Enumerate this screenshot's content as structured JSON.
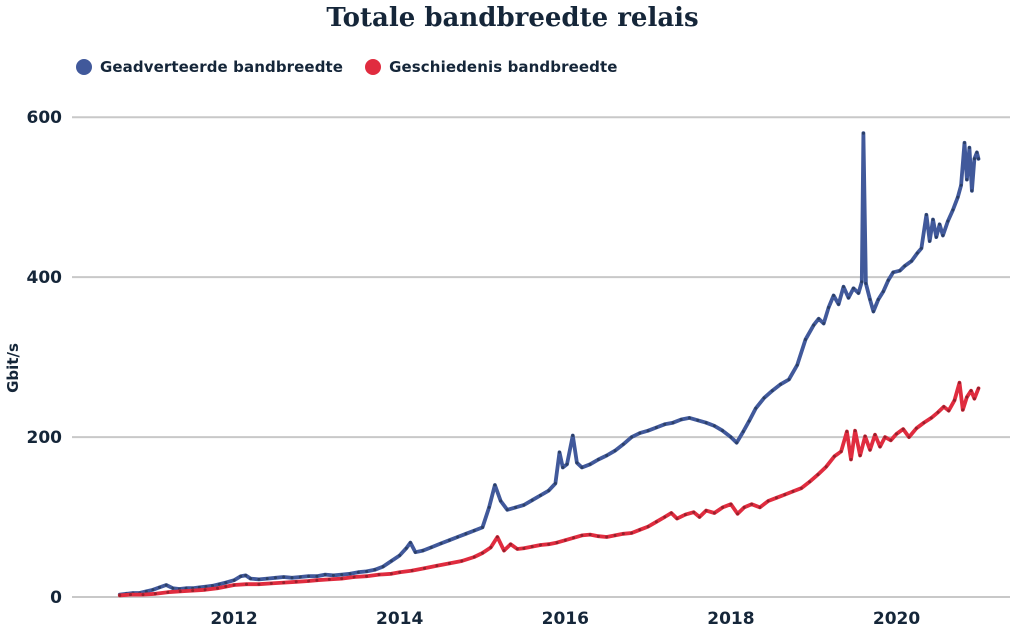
{
  "page": {
    "background_color": "#ffffff",
    "text_color": "#152639"
  },
  "chart_data": {
    "type": "line",
    "title": "Totale bandbreedte relais",
    "xlabel": "",
    "ylabel": "Gbit/s",
    "x_ticks": [
      2012,
      2014,
      2016,
      2018,
      2020
    ],
    "y_ticks": [
      0,
      200,
      400,
      600
    ],
    "x_range": [
      2010.2,
      2021.37
    ],
    "y_range": [
      0,
      634
    ],
    "grid": "horizontal",
    "grid_color": "#c8c8c8",
    "legend_position": "top-left",
    "series": [
      {
        "name": "Geadverteerde bandbreedte",
        "color": "#41599b",
        "marker_color": "#2b3f66",
        "points": [
          [
            2010.62,
            3
          ],
          [
            2010.7,
            4
          ],
          [
            2010.78,
            5
          ],
          [
            2010.86,
            5
          ],
          [
            2010.94,
            7
          ],
          [
            2011.02,
            9
          ],
          [
            2011.1,
            12
          ],
          [
            2011.18,
            15
          ],
          [
            2011.26,
            11
          ],
          [
            2011.34,
            10
          ],
          [
            2011.42,
            11
          ],
          [
            2011.5,
            11
          ],
          [
            2011.58,
            12
          ],
          [
            2011.66,
            13
          ],
          [
            2011.74,
            14
          ],
          [
            2011.82,
            16
          ],
          [
            2011.9,
            18
          ],
          [
            2012.0,
            21
          ],
          [
            2012.08,
            26
          ],
          [
            2012.14,
            27
          ],
          [
            2012.2,
            23
          ],
          [
            2012.3,
            22
          ],
          [
            2012.4,
            23
          ],
          [
            2012.5,
            24
          ],
          [
            2012.6,
            25
          ],
          [
            2012.7,
            24
          ],
          [
            2012.8,
            25
          ],
          [
            2012.9,
            26
          ],
          [
            2013.0,
            26
          ],
          [
            2013.1,
            28
          ],
          [
            2013.2,
            27
          ],
          [
            2013.3,
            28
          ],
          [
            2013.4,
            29
          ],
          [
            2013.5,
            31
          ],
          [
            2013.6,
            32
          ],
          [
            2013.7,
            34
          ],
          [
            2013.8,
            38
          ],
          [
            2013.9,
            45
          ],
          [
            2014.0,
            52
          ],
          [
            2014.08,
            61
          ],
          [
            2014.13,
            68
          ],
          [
            2014.19,
            56
          ],
          [
            2014.28,
            58
          ],
          [
            2014.38,
            62
          ],
          [
            2014.5,
            67
          ],
          [
            2014.6,
            71
          ],
          [
            2014.7,
            75
          ],
          [
            2014.8,
            79
          ],
          [
            2014.9,
            83
          ],
          [
            2015.0,
            87
          ],
          [
            2015.08,
            112
          ],
          [
            2015.15,
            140
          ],
          [
            2015.22,
            120
          ],
          [
            2015.3,
            109
          ],
          [
            2015.4,
            112
          ],
          [
            2015.5,
            115
          ],
          [
            2015.6,
            121
          ],
          [
            2015.7,
            127
          ],
          [
            2015.8,
            133
          ],
          [
            2015.88,
            142
          ],
          [
            2015.93,
            181
          ],
          [
            2015.97,
            162
          ],
          [
            2016.02,
            166
          ],
          [
            2016.09,
            202
          ],
          [
            2016.14,
            168
          ],
          [
            2016.2,
            162
          ],
          [
            2016.3,
            166
          ],
          [
            2016.4,
            172
          ],
          [
            2016.5,
            177
          ],
          [
            2016.6,
            183
          ],
          [
            2016.7,
            191
          ],
          [
            2016.8,
            200
          ],
          [
            2016.9,
            205
          ],
          [
            2017.0,
            208
          ],
          [
            2017.1,
            212
          ],
          [
            2017.2,
            216
          ],
          [
            2017.3,
            218
          ],
          [
            2017.4,
            222
          ],
          [
            2017.5,
            224
          ],
          [
            2017.6,
            221
          ],
          [
            2017.7,
            218
          ],
          [
            2017.8,
            214
          ],
          [
            2017.9,
            208
          ],
          [
            2018.0,
            200
          ],
          [
            2018.07,
            193
          ],
          [
            2018.15,
            207
          ],
          [
            2018.22,
            220
          ],
          [
            2018.3,
            236
          ],
          [
            2018.4,
            249
          ],
          [
            2018.5,
            258
          ],
          [
            2018.6,
            266
          ],
          [
            2018.7,
            272
          ],
          [
            2018.8,
            290
          ],
          [
            2018.9,
            322
          ],
          [
            2019.0,
            340
          ],
          [
            2019.06,
            348
          ],
          [
            2019.12,
            342
          ],
          [
            2019.18,
            362
          ],
          [
            2019.24,
            377
          ],
          [
            2019.3,
            366
          ],
          [
            2019.36,
            388
          ],
          [
            2019.42,
            374
          ],
          [
            2019.48,
            386
          ],
          [
            2019.54,
            380
          ],
          [
            2019.58,
            394
          ],
          [
            2019.6,
            580
          ],
          [
            2019.63,
            392
          ],
          [
            2019.68,
            372
          ],
          [
            2019.72,
            357
          ],
          [
            2019.78,
            372
          ],
          [
            2019.84,
            382
          ],
          [
            2019.9,
            396
          ],
          [
            2019.96,
            406
          ],
          [
            2020.04,
            408
          ],
          [
            2020.1,
            414
          ],
          [
            2020.18,
            420
          ],
          [
            2020.25,
            430
          ],
          [
            2020.3,
            436
          ],
          [
            2020.36,
            478
          ],
          [
            2020.4,
            445
          ],
          [
            2020.44,
            472
          ],
          [
            2020.48,
            450
          ],
          [
            2020.52,
            466
          ],
          [
            2020.56,
            452
          ],
          [
            2020.62,
            470
          ],
          [
            2020.68,
            484
          ],
          [
            2020.74,
            500
          ],
          [
            2020.78,
            515
          ],
          [
            2020.82,
            568
          ],
          [
            2020.85,
            522
          ],
          [
            2020.88,
            562
          ],
          [
            2020.91,
            508
          ],
          [
            2020.94,
            548
          ],
          [
            2020.97,
            556
          ],
          [
            2020.99,
            548
          ]
        ]
      },
      {
        "name": "Geschiedenis bandbreedte",
        "color": "#e02c3f",
        "marker_color": "#97202c",
        "points": [
          [
            2010.62,
            2
          ],
          [
            2010.75,
            3
          ],
          [
            2010.9,
            3
          ],
          [
            2011.05,
            4
          ],
          [
            2011.2,
            6
          ],
          [
            2011.35,
            7
          ],
          [
            2011.5,
            8
          ],
          [
            2011.65,
            9
          ],
          [
            2011.8,
            11
          ],
          [
            2011.9,
            13
          ],
          [
            2012.0,
            15
          ],
          [
            2012.15,
            16
          ],
          [
            2012.3,
            16
          ],
          [
            2012.45,
            17
          ],
          [
            2012.6,
            18
          ],
          [
            2012.75,
            19
          ],
          [
            2012.9,
            20
          ],
          [
            2013.0,
            21
          ],
          [
            2013.15,
            22
          ],
          [
            2013.3,
            23
          ],
          [
            2013.45,
            25
          ],
          [
            2013.6,
            26
          ],
          [
            2013.75,
            28
          ],
          [
            2013.9,
            29
          ],
          [
            2014.0,
            31
          ],
          [
            2014.15,
            33
          ],
          [
            2014.3,
            36
          ],
          [
            2014.45,
            39
          ],
          [
            2014.6,
            42
          ],
          [
            2014.75,
            45
          ],
          [
            2014.9,
            50
          ],
          [
            2015.0,
            55
          ],
          [
            2015.1,
            62
          ],
          [
            2015.18,
            75
          ],
          [
            2015.26,
            58
          ],
          [
            2015.34,
            66
          ],
          [
            2015.42,
            60
          ],
          [
            2015.5,
            61
          ],
          [
            2015.6,
            63
          ],
          [
            2015.7,
            65
          ],
          [
            2015.8,
            66
          ],
          [
            2015.9,
            68
          ],
          [
            2016.0,
            71
          ],
          [
            2016.1,
            74
          ],
          [
            2016.2,
            77
          ],
          [
            2016.3,
            78
          ],
          [
            2016.4,
            76
          ],
          [
            2016.5,
            75
          ],
          [
            2016.6,
            77
          ],
          [
            2016.7,
            79
          ],
          [
            2016.8,
            80
          ],
          [
            2016.9,
            84
          ],
          [
            2017.0,
            88
          ],
          [
            2017.1,
            94
          ],
          [
            2017.2,
            100
          ],
          [
            2017.28,
            105
          ],
          [
            2017.35,
            98
          ],
          [
            2017.45,
            103
          ],
          [
            2017.55,
            106
          ],
          [
            2017.62,
            100
          ],
          [
            2017.7,
            108
          ],
          [
            2017.8,
            105
          ],
          [
            2017.9,
            112
          ],
          [
            2018.0,
            116
          ],
          [
            2018.08,
            104
          ],
          [
            2018.16,
            112
          ],
          [
            2018.25,
            116
          ],
          [
            2018.35,
            112
          ],
          [
            2018.45,
            120
          ],
          [
            2018.55,
            124
          ],
          [
            2018.65,
            128
          ],
          [
            2018.75,
            132
          ],
          [
            2018.85,
            136
          ],
          [
            2018.95,
            144
          ],
          [
            2019.05,
            153
          ],
          [
            2019.15,
            163
          ],
          [
            2019.25,
            176
          ],
          [
            2019.33,
            182
          ],
          [
            2019.4,
            207
          ],
          [
            2019.45,
            172
          ],
          [
            2019.5,
            208
          ],
          [
            2019.56,
            177
          ],
          [
            2019.62,
            201
          ],
          [
            2019.68,
            184
          ],
          [
            2019.74,
            203
          ],
          [
            2019.8,
            188
          ],
          [
            2019.86,
            200
          ],
          [
            2019.93,
            196
          ],
          [
            2020.0,
            204
          ],
          [
            2020.08,
            210
          ],
          [
            2020.15,
            200
          ],
          [
            2020.24,
            211
          ],
          [
            2020.33,
            218
          ],
          [
            2020.42,
            224
          ],
          [
            2020.5,
            231
          ],
          [
            2020.57,
            238
          ],
          [
            2020.63,
            233
          ],
          [
            2020.7,
            246
          ],
          [
            2020.76,
            268
          ],
          [
            2020.8,
            234
          ],
          [
            2020.85,
            250
          ],
          [
            2020.9,
            258
          ],
          [
            2020.94,
            248
          ],
          [
            2020.99,
            261
          ]
        ]
      }
    ]
  }
}
